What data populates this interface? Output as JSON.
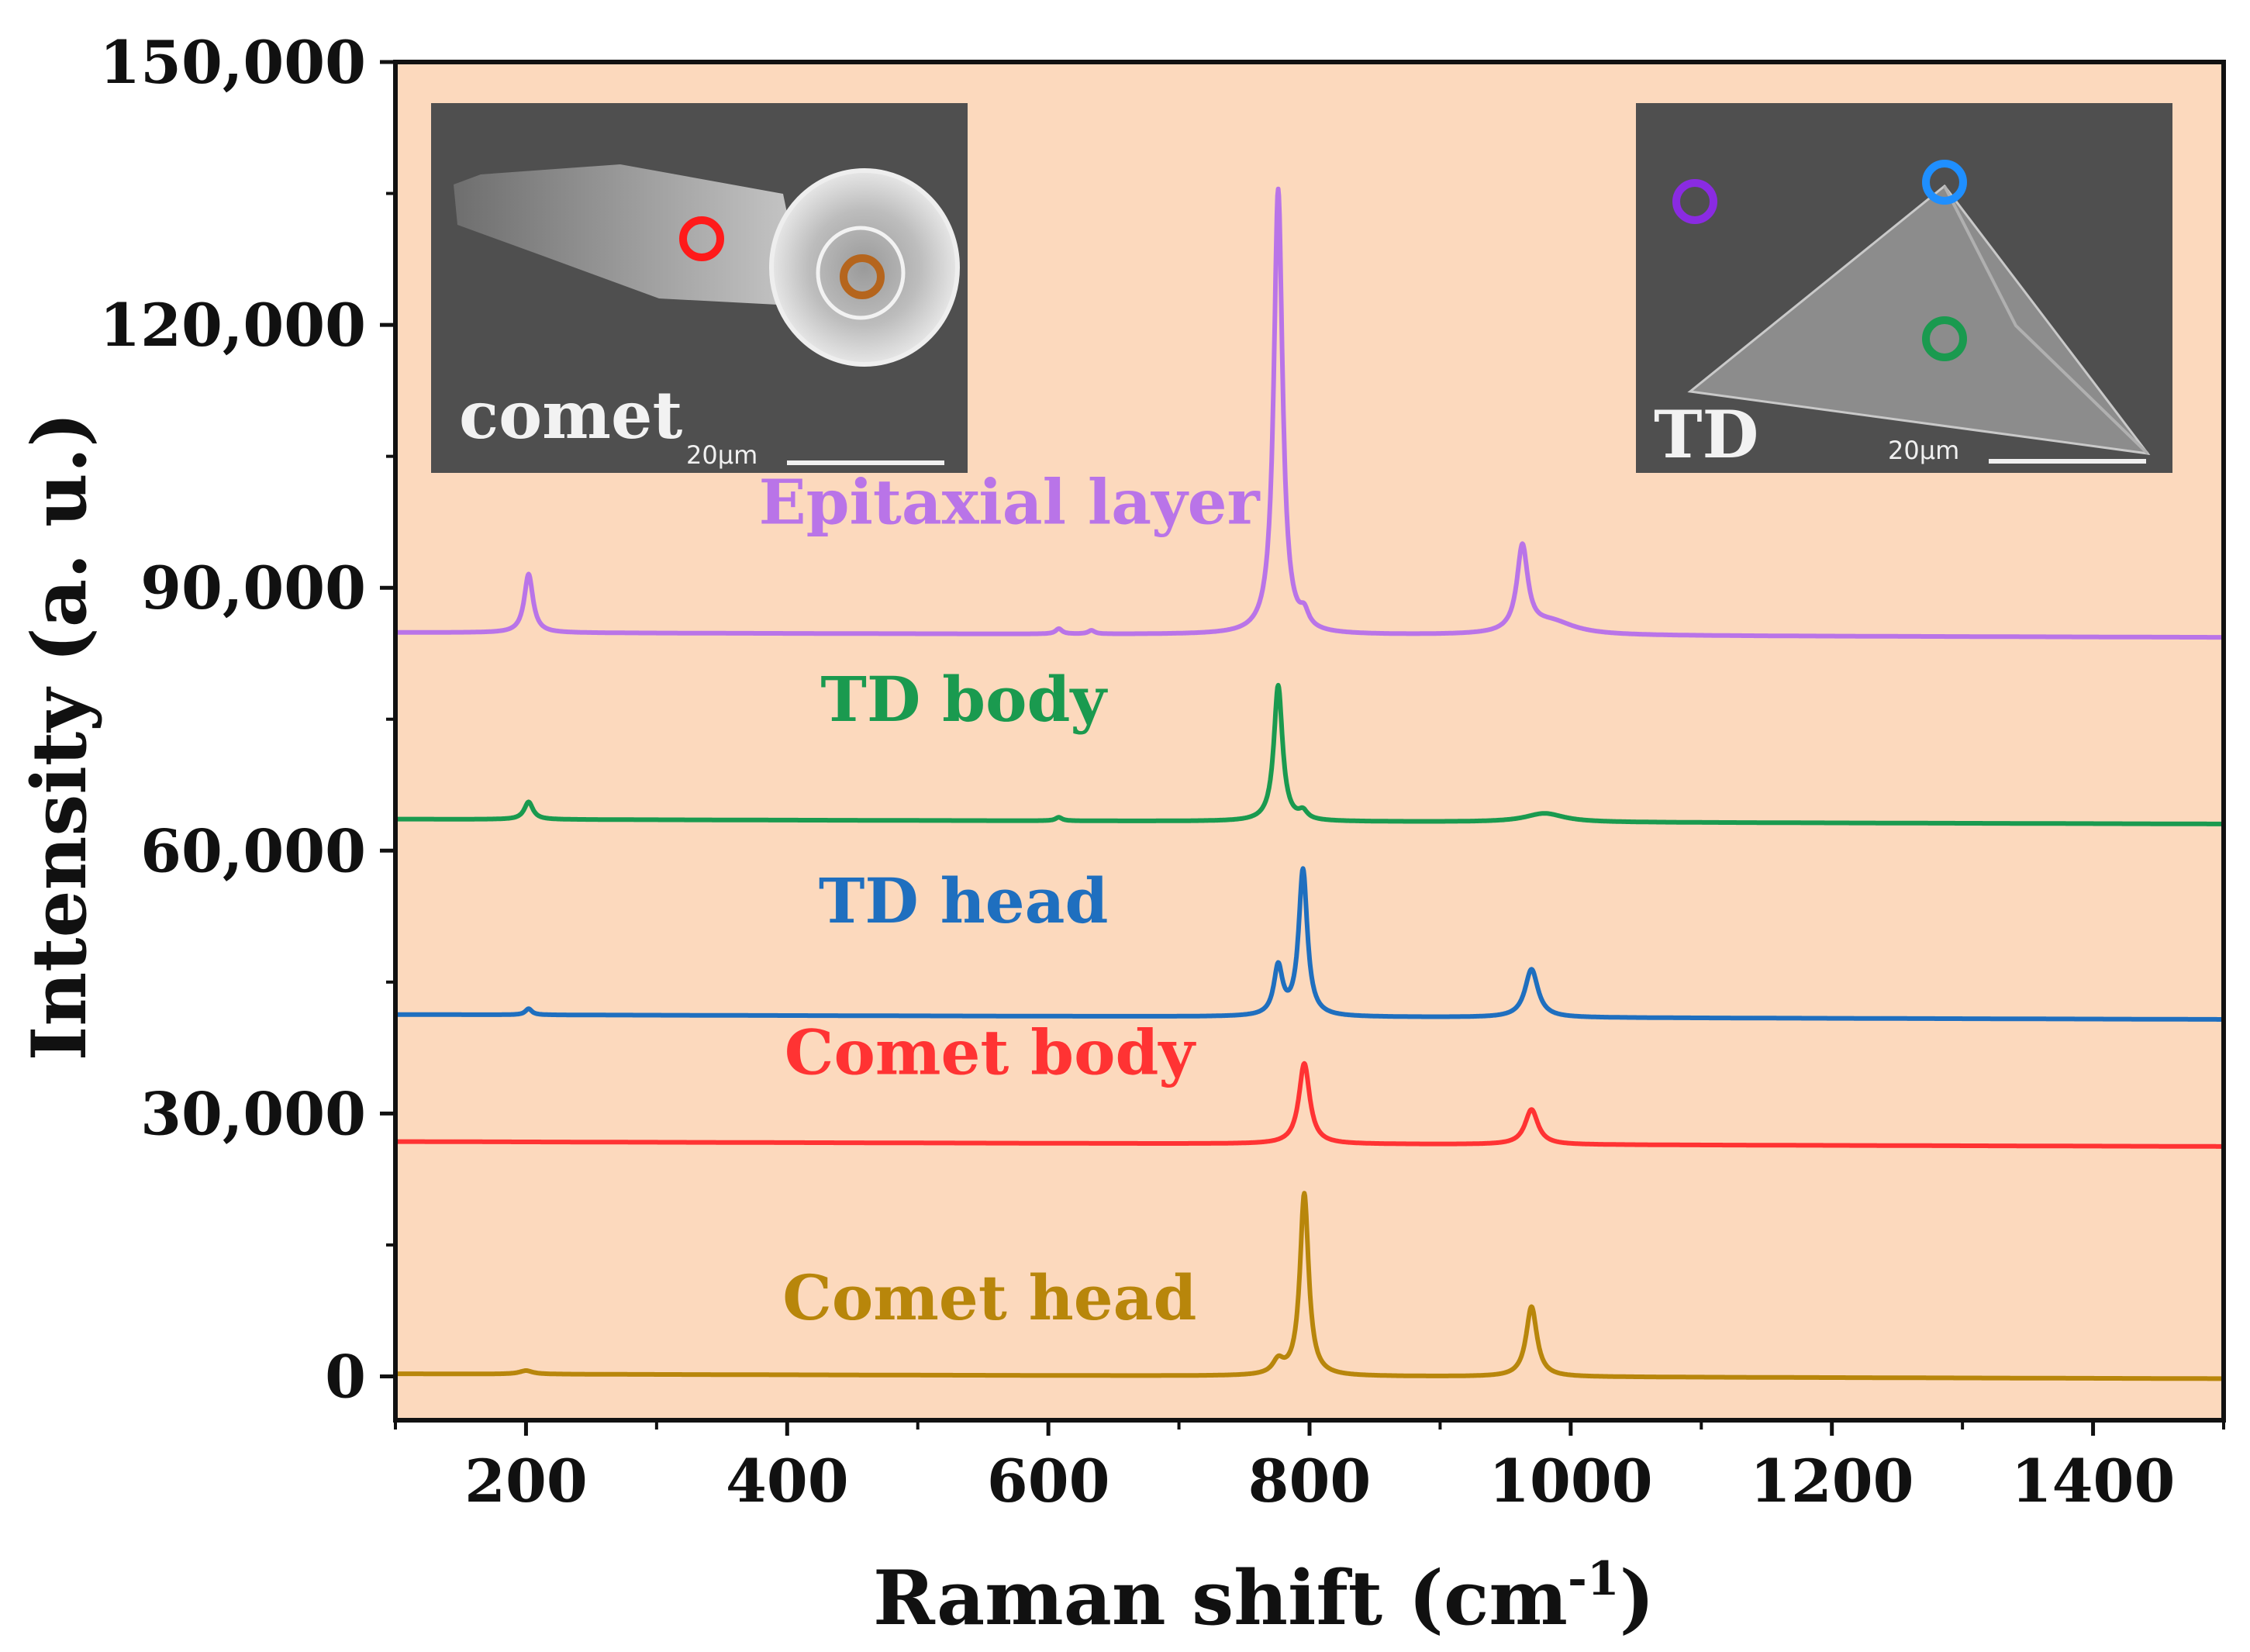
{
  "chart_data": {
    "type": "line",
    "xlabel": "Raman shift (cm",
    "xlabel_sup": "-1",
    "xlabel_tail": ")",
    "ylabel": "Intensity (a. u.)",
    "xlim": [
      100,
      1500
    ],
    "ylim": [
      -5000,
      150000
    ],
    "x_ticks": [
      200,
      400,
      600,
      800,
      1000,
      1200,
      1400
    ],
    "x_tick_labels": [
      "200",
      "400",
      "600",
      "800",
      "1000",
      "1200",
      "1400"
    ],
    "y_ticks": [
      0,
      30000,
      60000,
      90000,
      120000,
      150000
    ],
    "y_tick_labels": [
      "0",
      "30,000",
      "60,000",
      "90,000",
      "120,000",
      "150,000"
    ],
    "background_color": "#fcd9bd",
    "series": [
      {
        "name": "Comet head",
        "color": "#b8860b",
        "baseline": 300,
        "peaks": [
          [
            200,
            400,
            6
          ],
          [
            776,
            1500,
            5
          ],
          [
            796,
            20800,
            4
          ],
          [
            970,
            8000,
            5
          ]
        ],
        "label_x": 555,
        "label_value": 6500
      },
      {
        "name": "Comet body",
        "color": "#ff3333",
        "baseline": 26800,
        "peaks": [
          [
            796,
            9200,
            5
          ],
          [
            970,
            4000,
            6
          ]
        ],
        "label_x": 555,
        "label_value": 34500
      },
      {
        "name": "TD head",
        "color": "#1f6fbf",
        "baseline": 41300,
        "peaks": [
          [
            202,
            700,
            3
          ],
          [
            776,
            5500,
            4
          ],
          [
            795,
            16700,
            4
          ],
          [
            970,
            5500,
            6
          ]
        ],
        "label_x": 535,
        "label_value": 51800
      },
      {
        "name": "TD body",
        "color": "#1a9a4f",
        "baseline": 63600,
        "peaks": [
          [
            202,
            2000,
            4
          ],
          [
            608,
            400,
            3
          ],
          [
            776,
            15500,
            4
          ],
          [
            795,
            900,
            4
          ],
          [
            980,
            1000,
            18
          ]
        ],
        "label_x": 535,
        "label_value": 74800
      },
      {
        "name": "Epitaxial layer",
        "color": "#b974e8",
        "baseline": 84900,
        "peaks": [
          [
            202,
            6700,
            4
          ],
          [
            608,
            600,
            3
          ],
          [
            633,
            400,
            3
          ],
          [
            776,
            50800,
            4
          ],
          [
            796,
            1600,
            4
          ],
          [
            963,
            9700,
            5
          ],
          [
            985,
            1500,
            22
          ]
        ],
        "label_x": 570,
        "label_value": 97300
      }
    ],
    "insets": [
      {
        "name": "comet",
        "label": "comet",
        "scale": "20μm",
        "markers": [
          "#ff1a1a",
          "#b5651d"
        ]
      },
      {
        "name": "TD",
        "label": "TD",
        "scale": "20μm",
        "markers": [
          "#8a2be2",
          "#1f8fff",
          "#1a9a4f"
        ]
      }
    ]
  }
}
